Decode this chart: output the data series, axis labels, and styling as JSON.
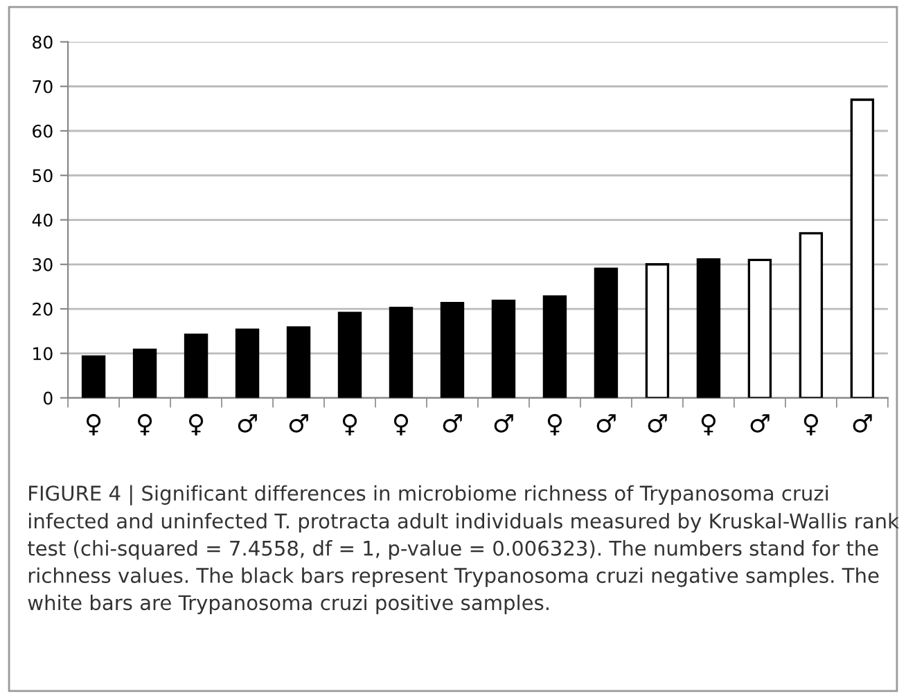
{
  "chart_data": {
    "type": "bar",
    "categories": [
      "♀",
      "♀",
      "♀",
      "♂",
      "♂",
      "♀",
      "♀",
      "♂",
      "♂",
      "♀",
      "♂",
      "♂",
      "♀",
      "♂",
      "♀",
      "♂"
    ],
    "values": [
      9.3,
      10.8,
      14.2,
      15.3,
      15.8,
      19.1,
      20.2,
      21.3,
      21.8,
      22.8,
      29,
      30,
      31.1,
      31,
      37,
      67
    ],
    "colors": [
      "#000000",
      "#000000",
      "#000000",
      "#000000",
      "#000000",
      "#000000",
      "#000000",
      "#000000",
      "#000000",
      "#000000",
      "#000000",
      "#ffffff",
      "#000000",
      "#ffffff",
      "#ffffff",
      "#ffffff"
    ],
    "ylim": [
      0,
      80
    ],
    "yticks": [
      0,
      10,
      20,
      30,
      40,
      50,
      60,
      70,
      80
    ],
    "grid": "y",
    "legend": false,
    "annotations": [
      "FIGURE 4 | Significant differences in microbiome richness of Trypanosoma cruzi infected and uninfected T. protracta adult individuals measured by Kruskal-Wallis rank test (chi-squared = 7.4558, df = 1, p-value = 0.006323). The numbers stand for the richness values. The black bars represent Trypanosoma cruzi negative samples. The white bars are Trypanosoma cruzi positive samples."
    ]
  }
}
